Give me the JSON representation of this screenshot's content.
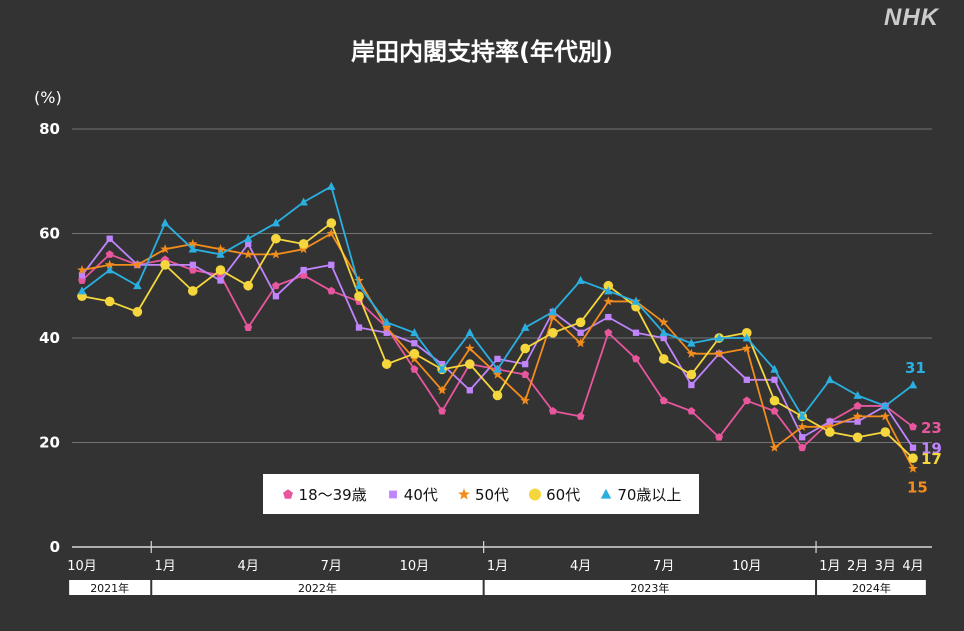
{
  "logo_text": "NHK",
  "title": "岸田内閣支持率(年代別)",
  "unit_label": "(%)",
  "chart_data": {
    "type": "line",
    "title": "岸田内閣支持率(年代別)",
    "ylabel": "(%)",
    "xlabel": "",
    "ylim": [
      0,
      80
    ],
    "yticks": [
      0,
      20,
      40,
      60,
      80
    ],
    "grid": true,
    "legend_position": "bottom-center",
    "x": [
      "2021-10",
      "2021-11",
      "2021-12",
      "2022-01",
      "2022-02",
      "2022-03",
      "2022-04",
      "2022-05",
      "2022-06",
      "2022-07",
      "2022-08",
      "2022-09",
      "2022-10",
      "2022-11",
      "2022-12",
      "2023-01",
      "2023-02",
      "2023-03",
      "2023-04",
      "2023-05",
      "2023-06",
      "2023-07",
      "2023-08",
      "2023-09",
      "2023-10",
      "2023-11",
      "2023-12",
      "2024-01",
      "2024-02",
      "2024-03",
      "2024-04"
    ],
    "month_labels": [
      {
        "index": 0,
        "label": "10月"
      },
      {
        "index": 3,
        "label": "1月"
      },
      {
        "index": 6,
        "label": "4月"
      },
      {
        "index": 9,
        "label": "7月"
      },
      {
        "index": 12,
        "label": "10月"
      },
      {
        "index": 15,
        "label": "1月"
      },
      {
        "index": 18,
        "label": "4月"
      },
      {
        "index": 21,
        "label": "7月"
      },
      {
        "index": 24,
        "label": "10月"
      },
      {
        "index": 27,
        "label": "1月"
      },
      {
        "index": 28,
        "label": "2月"
      },
      {
        "index": 29,
        "label": "3月"
      },
      {
        "index": 30,
        "label": "4月"
      }
    ],
    "year_labels": [
      {
        "label": "2021年",
        "start": 0,
        "end": 2
      },
      {
        "label": "2022年",
        "start": 3,
        "end": 14
      },
      {
        "label": "2023年",
        "start": 15,
        "end": 26
      },
      {
        "label": "2024年",
        "start": 27,
        "end": 30
      }
    ],
    "series": [
      {
        "name": "18〜39歳",
        "color": "#e8569e",
        "marker": "pentagon",
        "values": [
          51,
          56,
          54,
          55,
          53,
          52,
          42,
          50,
          52,
          49,
          47,
          42,
          34,
          26,
          35,
          34,
          33,
          26,
          25,
          41,
          36,
          28,
          26,
          21,
          28,
          26,
          19,
          24,
          27,
          27,
          23
        ],
        "end_label": "23"
      },
      {
        "name": "40代",
        "color": "#c084fc",
        "marker": "square",
        "values": [
          52,
          59,
          54,
          54,
          54,
          51,
          58,
          48,
          53,
          54,
          42,
          41,
          39,
          35,
          30,
          36,
          35,
          45,
          41,
          44,
          41,
          40,
          31,
          37,
          32,
          32,
          21,
          24,
          24,
          27,
          19
        ],
        "end_label": "19"
      },
      {
        "name": "50代",
        "color": "#f28c1c",
        "marker": "star",
        "values": [
          53,
          54,
          54,
          57,
          58,
          57,
          56,
          56,
          57,
          60,
          51,
          42,
          36,
          30,
          38,
          33,
          28,
          44,
          39,
          47,
          47,
          43,
          37,
          37,
          38,
          19,
          23,
          23,
          25,
          25,
          15
        ],
        "end_label": "15"
      },
      {
        "name": "60代",
        "color": "#f5d63d",
        "marker": "circle",
        "values": [
          48,
          47,
          45,
          54,
          49,
          53,
          50,
          59,
          58,
          62,
          48,
          35,
          37,
          34,
          35,
          29,
          38,
          41,
          43,
          50,
          46,
          36,
          33,
          40,
          41,
          28,
          25,
          22,
          21,
          22,
          17
        ],
        "end_label": "17"
      },
      {
        "name": "70歳以上",
        "color": "#2ab0e0",
        "marker": "triangle",
        "values": [
          49,
          53,
          50,
          62,
          57,
          56,
          59,
          62,
          66,
          69,
          50,
          43,
          41,
          34,
          41,
          34,
          42,
          45,
          51,
          49,
          47,
          41,
          39,
          40,
          40,
          34,
          25,
          32,
          29,
          27,
          31
        ],
        "end_label": "31"
      }
    ]
  },
  "legend": [
    {
      "name": "18〜39歳",
      "color": "#e8569e",
      "marker": "pentagon"
    },
    {
      "name": "40代",
      "color": "#c084fc",
      "marker": "square"
    },
    {
      "name": "50代",
      "color": "#f28c1c",
      "marker": "star"
    },
    {
      "name": "60代",
      "color": "#f5d63d",
      "marker": "circle"
    },
    {
      "name": "70歳以上",
      "color": "#2ab0e0",
      "marker": "triangle"
    }
  ]
}
